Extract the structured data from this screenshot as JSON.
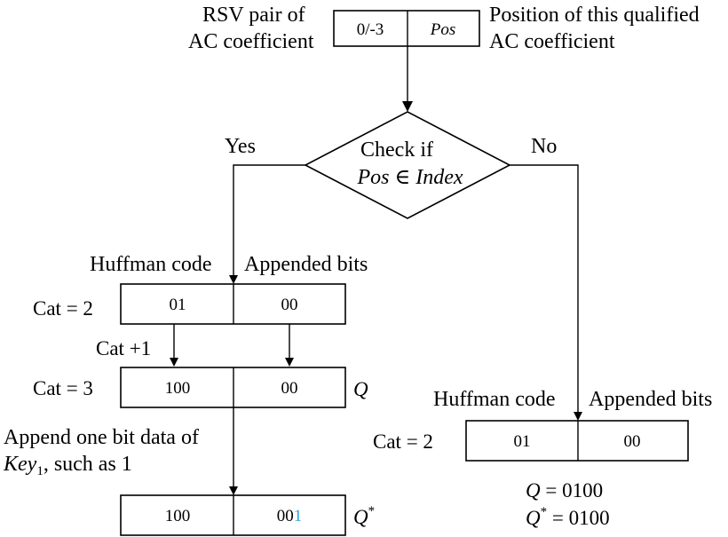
{
  "top": {
    "left_note": [
      "RSV pair of",
      "AC coefficient"
    ],
    "rsv": "0/-3",
    "pos": "Pos",
    "right_note": [
      "Position of this qualified",
      "AC coefficient"
    ]
  },
  "decision": {
    "line1": "Check if",
    "line2_a": "Pos",
    "line2_b": " ∈ ",
    "line2_c": "Index",
    "yes": "Yes",
    "no": "No"
  },
  "left": {
    "header_code": "Huffman code",
    "header_bits": "Appended bits",
    "row1": {
      "cat": "Cat = 2",
      "code": "01",
      "bits": "00"
    },
    "step": "Cat +1",
    "row2": {
      "cat": "Cat = 3",
      "code": "100",
      "bits": "00",
      "tag": "Q"
    },
    "append_note": {
      "line1": "Append one bit data of",
      "key": "Key",
      "key_sub": "1",
      "rest": ", such as 1"
    },
    "row3": {
      "code": "100",
      "bits_prefix": "00",
      "bits_new": "1",
      "tag": "Q",
      "tag_sup": "*"
    }
  },
  "right": {
    "header_code": "Huffman code",
    "header_bits": "Appended bits",
    "row": {
      "cat": "Cat = 2",
      "code": "01",
      "bits": "00"
    },
    "eq1": {
      "lhs": "Q",
      "rhs": " = 0100"
    },
    "eq2": {
      "lhs": "Q",
      "sup": "*",
      "rhs": " = 0100"
    }
  },
  "colors": {
    "highlight_bit": "#2aa6e0",
    "line": "#000000"
  }
}
